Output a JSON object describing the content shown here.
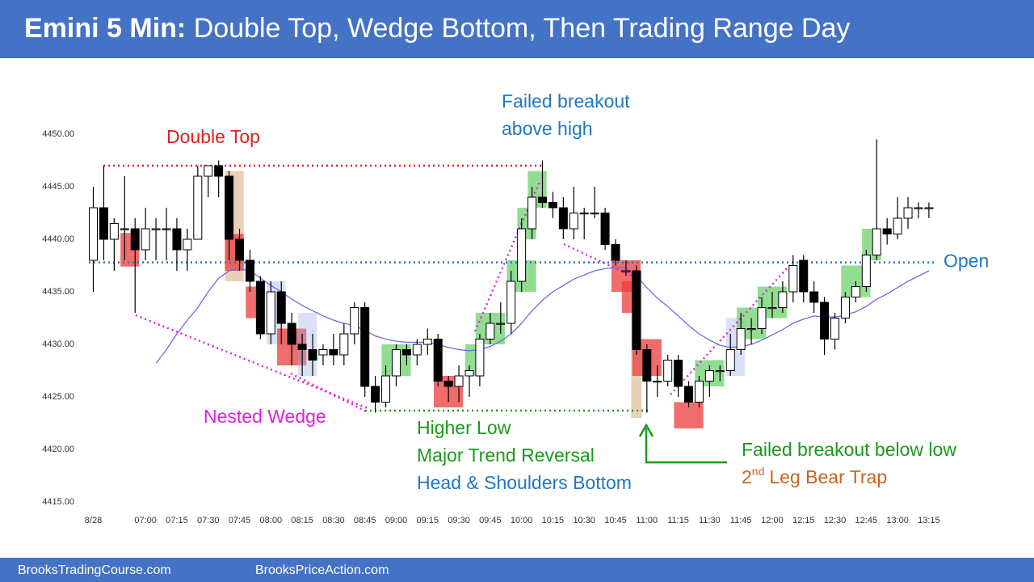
{
  "header": {
    "title_bold": "Emini 5 Min:",
    "title_rest": "Double Top, Wedge Bottom, Then Trading Range Day"
  },
  "footer": {
    "left": "BrooksTradingCourse.com",
    "right": "BrooksPriceAction.com"
  },
  "chart_data": {
    "type": "candlestick",
    "categories": [
      "8/28",
      null,
      null,
      null,
      null,
      "07:00",
      null,
      null,
      "07:15",
      null,
      null,
      "07:30",
      null,
      null,
      "07:45",
      null,
      null,
      "08:00",
      null,
      null,
      "08:15",
      null,
      null,
      "08:30",
      null,
      null,
      "08:45",
      null,
      null,
      "09:00",
      null,
      null,
      "09:15",
      null,
      null,
      "09:30",
      null,
      null,
      "09:45",
      null,
      null,
      "10:00",
      null,
      null,
      "10:15",
      null,
      null,
      "10:30",
      null,
      null,
      "10:45",
      null,
      null,
      "11:00",
      null,
      null,
      "11:15",
      null,
      null,
      "11:30",
      null,
      null,
      "11:45",
      null,
      null,
      "12:00",
      null,
      null,
      "12:15",
      null,
      null,
      "12:30",
      null,
      null,
      "12:45",
      null,
      null,
      "13:00",
      null,
      null,
      "13:15"
    ],
    "open": [
      4438,
      4443,
      4440,
      4441,
      4441,
      4439,
      4441,
      4441,
      4441,
      4439,
      4440,
      4446,
      4447,
      4446,
      4440,
      4438,
      4436,
      4431,
      4435,
      4432,
      4430,
      4429.5,
      4429,
      4429.5,
      4429,
      4431,
      4433.5,
      4426,
      4424.5,
      4427,
      4429.5,
      4429,
      4430,
      4430.5,
      4426.5,
      4426,
      4427,
      4427,
      4430.5,
      4432,
      4432,
      4436,
      4441,
      4444,
      4443.5,
      4443,
      4441,
      4442.5,
      4442.5,
      4442.5,
      4439.5,
      4437,
      4437,
      4429.5,
      4426.5,
      4426.5,
      4428.5,
      4426,
      4424.5,
      4426.5,
      4427.5,
      4427.5,
      4429.5,
      4431.5,
      4431.5,
      4433.5,
      4433.5,
      4435,
      4438,
      4435,
      4434,
      4430.5,
      4432.5,
      4434.5,
      4435.5,
      4438.5,
      4441,
      4440.5,
      4442,
      4443,
      4443
    ],
    "high": [
      4445,
      4447,
      4442,
      4446,
      4442,
      4443,
      4442,
      4443,
      4442,
      4441,
      4447,
      4447,
      4447.5,
      4446.5,
      4441,
      4439,
      4436.5,
      4436,
      4436,
      4433,
      4431,
      4431,
      4430,
      4431,
      4432,
      4434,
      4434,
      4427,
      4428,
      4430,
      4430,
      4430.5,
      4431.5,
      4431,
      4427,
      4428,
      4428,
      4431,
      4433,
      4434,
      4437,
      4442,
      4445,
      4447.5,
      4444.5,
      4444,
      4445,
      4443,
      4445,
      4443,
      4440,
      4438,
      4437.5,
      4430,
      4428,
      4429,
      4429,
      4426.5,
      4427,
      4428,
      4428,
      4431,
      4433,
      4432.5,
      4434.5,
      4435,
      4436,
      4438.5,
      4438.5,
      4436,
      4434.5,
      4433,
      4435,
      4436,
      4439,
      4449.5,
      4442,
      4444,
      4444,
      4443.5,
      4443.5
    ],
    "low": [
      4435,
      4438,
      4437,
      4438,
      4433,
      4438,
      4438,
      4438,
      4437,
      4437,
      4440,
      4444,
      4444,
      4438,
      4437,
      4435,
      4430.5,
      4430,
      4430,
      4428,
      4427,
      4427,
      4428,
      4428,
      4428,
      4430,
      4425,
      4423.5,
      4424,
      4426,
      4428,
      4428,
      4429,
      4426,
      4424.5,
      4424.5,
      4425,
      4426,
      4430,
      4431,
      4431,
      4435,
      4440,
      4443,
      4442,
      4440,
      4440,
      4440,
      4442,
      4439,
      4437.5,
      4436.5,
      4429,
      4423.5,
      4425,
      4426,
      4425,
      4424,
      4424,
      4425,
      4426.5,
      4427,
      4429,
      4430,
      4431,
      4432.5,
      4433,
      4434,
      4434,
      4433,
      4429,
      4429.5,
      4432,
      4434,
      4435,
      4438,
      4439.5,
      4440,
      4441,
      4442,
      4442
    ],
    "close": [
      4443,
      4440,
      4441.5,
      4441,
      4439,
      4441,
      4441,
      4441,
      4439,
      4440,
      4446,
      4447,
      4446,
      4440,
      4438,
      4436,
      4431,
      4435,
      4432,
      4430,
      4429.5,
      4428.5,
      4429.5,
      4429,
      4431,
      4433.5,
      4426,
      4424.5,
      4427,
      4429.5,
      4429,
      4430,
      4430.5,
      4426.5,
      4426,
      4427,
      4427.5,
      4430.5,
      4432,
      4432,
      4436,
      4441,
      4444,
      4443.5,
      4443,
      4441,
      4442.5,
      4442.5,
      4442.5,
      4439.5,
      4438,
      4437,
      4429.5,
      4426.5,
      4426.5,
      4428.5,
      4426,
      4424.5,
      4426.5,
      4427.5,
      4427.5,
      4429.5,
      4431.5,
      4431.5,
      4433.5,
      4433.5,
      4435,
      4437.5,
      4435,
      4434,
      4430.5,
      4432.5,
      4434.5,
      4435.5,
      4438.5,
      4441,
      4440.5,
      4442,
      4443,
      4443,
      4443
    ],
    "up_color": "#ffffff",
    "down_color": "#000000",
    "moving_average": {
      "color": "#6b6be8",
      "values": [
        null,
        null,
        null,
        null,
        null,
        null,
        4428.2,
        4429.5,
        4431,
        4432.3,
        4433.5,
        4435,
        4436.3,
        4437,
        4437.2,
        4437,
        4436.3,
        4435.6,
        4435,
        4434.3,
        4433.7,
        4433.2,
        4432.7,
        4432.3,
        4432,
        4431.8,
        4431.3,
        4430.8,
        4430.5,
        4430.3,
        4430.2,
        4430.2,
        4430.2,
        4430,
        4429.7,
        4429.5,
        4429.4,
        4429.5,
        4429.8,
        4430.3,
        4431,
        4432,
        4433.2,
        4434.2,
        4435,
        4435.6,
        4436.2,
        4436.6,
        4437,
        4437.2,
        4437.3,
        4437.3,
        4436.5,
        4435.4,
        4434.4,
        4433.6,
        4432.7,
        4431.8,
        4431,
        4430.4,
        4429.9,
        4429.7,
        4429.8,
        4430,
        4430.4,
        4430.9,
        4431.4,
        4432,
        4432.4,
        4432.7,
        4432.6,
        4432.6,
        4432.8,
        4433.1,
        4433.6,
        4434.3,
        4434.8,
        4435.4,
        4436,
        4436.5,
        4437
      ]
    },
    "open_level": {
      "label": "Open",
      "value": 4437.8,
      "color": "#1f77c4"
    },
    "ylim": [
      4414,
      4455
    ],
    "yticks": [
      {
        "value": 4415,
        "label": "4415.00"
      },
      {
        "value": 4420,
        "label": "4420.00"
      },
      {
        "value": 4425,
        "label": "4425.00"
      },
      {
        "value": 4430,
        "label": "4430.00"
      },
      {
        "value": 4435,
        "label": "4435.00"
      },
      {
        "value": 4440,
        "label": "4440.00"
      },
      {
        "value": 4445,
        "label": "4445.00"
      },
      {
        "value": 4450,
        "label": "4450.00"
      }
    ],
    "annotations": [
      {
        "text": "Double Top",
        "color": "#e0201c"
      },
      {
        "text": "Failed breakout",
        "color": "#1f77c4"
      },
      {
        "text": "above high",
        "color": "#1f77c4"
      },
      {
        "text": "Nested Wedge",
        "color": "#e020e0"
      },
      {
        "text": "Higher Low",
        "color": "#1a9a1a"
      },
      {
        "text": "Major Trend Reversal",
        "color": "#1a9a1a"
      },
      {
        "text": "Head & Shoulders Bottom",
        "color": "#1f77c4"
      },
      {
        "text": "Failed breakout below low",
        "color": "#1a9a1a"
      }
    ],
    "bear_trap": {
      "number": "2",
      "superscript": "nd",
      "rest": "Leg Bear Trap",
      "color": "#c8641e"
    }
  }
}
